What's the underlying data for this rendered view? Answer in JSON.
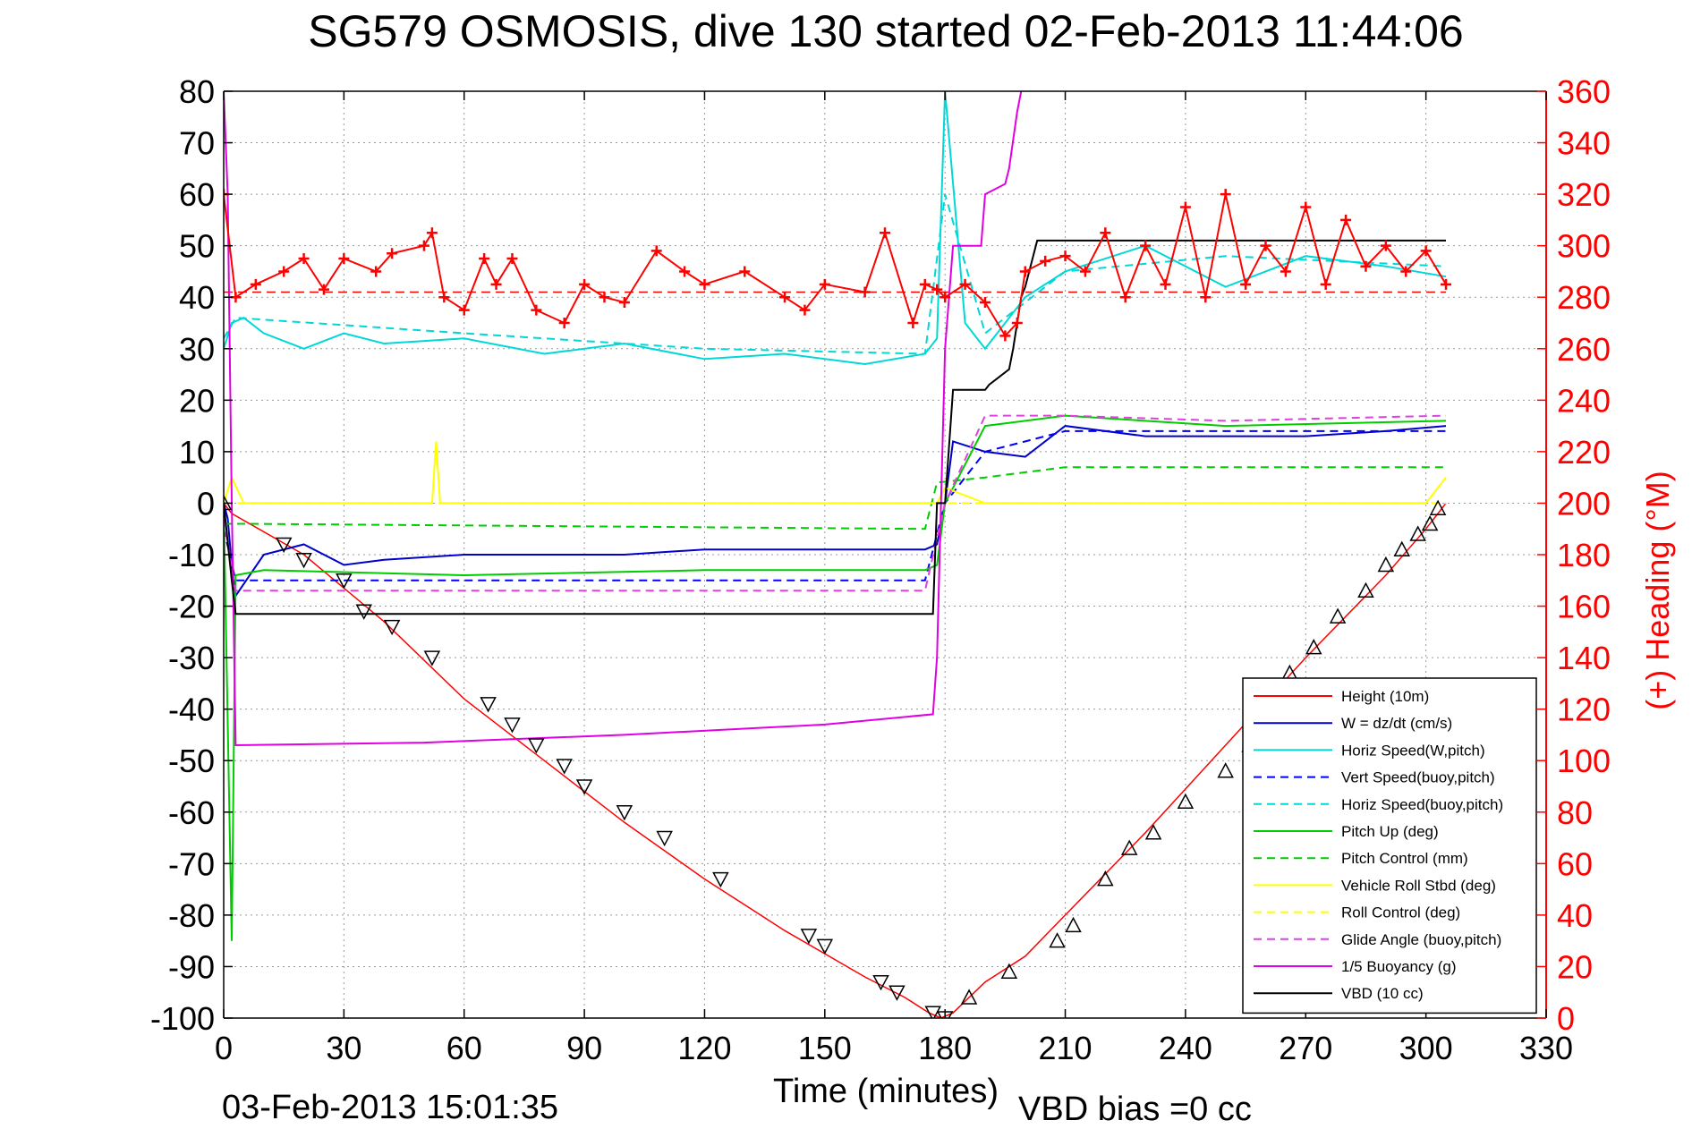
{
  "chart_data": {
    "type": "line",
    "title": "SG579 OSMOSIS, dive 130 started 02-Feb-2013 11:44:06",
    "xlabel": "Time (minutes)",
    "ylabel_right": "(+) Heading (°M)",
    "footer_date": "03-Feb-2013 15:01:35",
    "footer_bias": "VBD bias =0 cc",
    "xlim": [
      0,
      330
    ],
    "ylim": [
      -100,
      80
    ],
    "ylim_right": [
      0,
      360
    ],
    "x_ticks": [
      0,
      30,
      60,
      90,
      120,
      150,
      180,
      210,
      240,
      270,
      300,
      330
    ],
    "y_ticks": [
      80,
      70,
      60,
      50,
      40,
      30,
      20,
      10,
      0,
      -10,
      -20,
      -30,
      -40,
      -50,
      -60,
      -70,
      -80,
      -90,
      -100
    ],
    "y_right_ticks": [
      360,
      340,
      320,
      300,
      280,
      260,
      240,
      220,
      200,
      180,
      160,
      140,
      120,
      100,
      80,
      60,
      40,
      20,
      0
    ],
    "grid": true,
    "legend_position": "bottom-right",
    "series": [
      {
        "name": "Height (10m)",
        "color": "#ff0000",
        "dash": "solid",
        "x": [
          0,
          2,
          20,
          40,
          60,
          80,
          100,
          120,
          140,
          160,
          170,
          176,
          179,
          182,
          190,
          200,
          210,
          230,
          250,
          270,
          290,
          300,
          303,
          305
        ],
        "y": [
          0,
          -2,
          -10,
          -23,
          -38,
          -50,
          -62,
          -73,
          -83,
          -92,
          -96,
          -99,
          -100,
          -99,
          -93,
          -88,
          -80,
          -64,
          -47,
          -30,
          -14,
          -5,
          -2,
          0
        ]
      },
      {
        "name": "W = dz/dt (cm/s)",
        "color": "#0000cc",
        "dash": "solid",
        "x": [
          0,
          1,
          2,
          3,
          10,
          20,
          30,
          40,
          60,
          80,
          100,
          120,
          140,
          160,
          175,
          178,
          180,
          182,
          190,
          200,
          210,
          230,
          250,
          270,
          290,
          305
        ],
        "y": [
          0,
          -3,
          -12,
          -18,
          -10,
          -8,
          -12,
          -11,
          -10,
          -10,
          -10,
          -9,
          -9,
          -9,
          -9,
          -8,
          0,
          12,
          10,
          9,
          15,
          13,
          13,
          13,
          14,
          15
        ]
      },
      {
        "name": "Horiz Speed(W,pitch)",
        "color": "#00d8d8",
        "dash": "solid",
        "x": [
          0,
          2,
          5,
          10,
          20,
          30,
          40,
          60,
          80,
          100,
          120,
          140,
          160,
          175,
          178,
          180,
          185,
          190,
          200,
          210,
          230,
          250,
          270,
          290,
          305
        ],
        "y": [
          30,
          35,
          36,
          33,
          30,
          33,
          31,
          32,
          29,
          31,
          28,
          29,
          27,
          29,
          32,
          80,
          35,
          30,
          40,
          45,
          50,
          42,
          48,
          46,
          44
        ]
      },
      {
        "name": "Vert Speed(buoy,pitch)",
        "color": "#0000ff",
        "dash": "dashed",
        "x": [
          0,
          3,
          60,
          120,
          175,
          180,
          190,
          210,
          250,
          305
        ],
        "y": [
          -5,
          -15,
          -15,
          -15,
          -15,
          0,
          10,
          14,
          14,
          14
        ]
      },
      {
        "name": "Horiz Speed(buoy,pitch)",
        "color": "#00d8d8",
        "dash": "dashed",
        "x": [
          0,
          3,
          60,
          120,
          175,
          180,
          190,
          210,
          250,
          305
        ],
        "y": [
          32,
          36,
          33,
          30,
          29,
          60,
          33,
          45,
          48,
          46
        ]
      },
      {
        "name": "Pitch Up (deg)",
        "color": "#00cc00",
        "dash": "solid",
        "x": [
          0,
          2,
          3,
          10,
          60,
          120,
          175,
          178,
          180,
          190,
          210,
          250,
          305
        ],
        "y": [
          0,
          -85,
          -14,
          -13,
          -14,
          -13,
          -13,
          -12,
          0,
          15,
          17,
          15,
          16
        ]
      },
      {
        "name": "Pitch Control (mm)",
        "color": "#00cc00",
        "dash": "dashed",
        "x": [
          0,
          5,
          175,
          178,
          190,
          200,
          210,
          230,
          305
        ],
        "y": [
          -4,
          -4,
          -5,
          4,
          5,
          6,
          7,
          7,
          7
        ]
      },
      {
        "name": "Vehicle Roll Stbd (deg)",
        "color": "#ffff00",
        "dash": "solid",
        "x": [
          0,
          2,
          5,
          52,
          53,
          54,
          100,
          178,
          180,
          190,
          200,
          210,
          250,
          300,
          305
        ],
        "y": [
          0,
          5,
          0,
          0,
          12,
          0,
          0,
          0,
          3,
          0,
          0,
          0,
          0,
          0,
          5
        ]
      },
      {
        "name": "Roll Control (deg)",
        "color": "#ffff00",
        "dash": "dashed",
        "x": [
          0,
          5,
          100,
          178,
          200,
          250,
          305
        ],
        "y": [
          0,
          0,
          0,
          0,
          0,
          0,
          0
        ]
      },
      {
        "name": "Glide Angle (buoy,pitch)",
        "color": "#e040e0",
        "dash": "dashed",
        "x": [
          0,
          3,
          60,
          120,
          175,
          180,
          190,
          210,
          250,
          305
        ],
        "y": [
          -3,
          -17,
          -17,
          -17,
          -17,
          0,
          17,
          17,
          16,
          17
        ]
      },
      {
        "name": "1/5 Buoyancy (g)",
        "color": "#e000e0",
        "dash": "solid",
        "x": [
          0,
          1,
          2,
          3,
          50,
          100,
          150,
          177,
          178,
          180,
          182,
          189,
          190,
          195,
          196,
          198,
          199
        ],
        "y": [
          80,
          60,
          0,
          -47,
          -46.5,
          -45,
          -43,
          -41,
          -30,
          30,
          50,
          50,
          60,
          62,
          65,
          76,
          80
        ]
      },
      {
        "name": "VBD (10 cc)",
        "color": "#000000",
        "dash": "solid",
        "x": [
          0,
          2,
          3,
          177,
          178,
          180,
          182,
          190,
          191,
          196,
          197,
          199,
          200,
          203,
          305
        ],
        "y": [
          0,
          -15,
          -21.5,
          -21.5,
          0,
          0,
          22,
          22,
          23,
          26,
          30,
          40,
          42,
          51,
          51
        ]
      }
    ],
    "heading": {
      "name": "Heading",
      "color": "#ff0000",
      "marker": "+",
      "axis": "right",
      "mean": 282,
      "x": [
        0,
        3,
        8,
        15,
        20,
        25,
        30,
        38,
        42,
        50,
        52,
        55,
        60,
        65,
        68,
        72,
        78,
        85,
        90,
        95,
        100,
        108,
        115,
        120,
        130,
        140,
        145,
        150,
        160,
        165,
        172,
        175,
        178,
        180,
        185,
        190,
        195,
        198,
        200,
        205,
        210,
        215,
        220,
        225,
        230,
        235,
        240,
        245,
        250,
        255,
        260,
        265,
        270,
        275,
        280,
        285,
        290,
        295,
        300,
        305
      ],
      "y": [
        320,
        280,
        285,
        290,
        295,
        283,
        295,
        290,
        297,
        300,
        305,
        280,
        275,
        295,
        285,
        295,
        275,
        270,
        285,
        280,
        278,
        298,
        290,
        285,
        290,
        280,
        275,
        285,
        282,
        305,
        270,
        285,
        283,
        280,
        285,
        278,
        265,
        270,
        290,
        294,
        296,
        290,
        305,
        280,
        300,
        285,
        315,
        280,
        320,
        285,
        300,
        290,
        315,
        285,
        310,
        292,
        300,
        290,
        298,
        285
      ]
    },
    "markers": {
      "x": [
        0,
        15,
        20,
        30,
        35,
        42,
        52,
        66,
        72,
        78,
        85,
        90,
        100,
        110,
        124,
        146,
        150,
        164,
        168,
        177,
        180,
        186,
        196,
        208,
        212,
        220,
        226,
        232,
        240,
        250,
        256,
        262,
        266,
        272,
        278,
        285,
        290,
        294,
        298,
        301,
        303
      ],
      "y": [
        0,
        -8,
        -11,
        -15,
        -21,
        -24,
        -30,
        -39,
        -43,
        -47,
        -51,
        -55,
        -60,
        -65,
        -73,
        -84,
        -86,
        -93,
        -95,
        -99,
        -100,
        -96,
        -91,
        -85,
        -82,
        -73,
        -67,
        -64,
        -58,
        -52,
        -47,
        -41,
        -33,
        -28,
        -22,
        -17,
        -12,
        -9,
        -6,
        -4,
        -1
      ]
    }
  }
}
